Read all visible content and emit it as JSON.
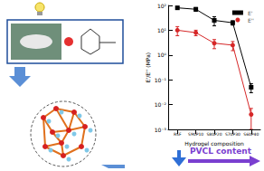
{
  "chart_data": {
    "type": "line",
    "x_label": "Hydrogel composition",
    "y_label": "E'/E'' (MPa)",
    "annotations": [
      "PVCL content"
    ],
    "categories": [
      "RSF",
      "S90P10",
      "S80P20",
      "S70P30",
      "S60P40"
    ],
    "series": [
      {
        "name": "E'",
        "color": "#000000",
        "marker": "square",
        "line_style": "solid",
        "values": [
          80,
          70,
          25,
          20,
          0.05
        ],
        "errors": [
          10,
          12,
          10,
          4,
          0.02
        ]
      },
      {
        "name": "E''",
        "color": "#d62728",
        "marker": "circle",
        "line_style": "solid",
        "values": [
          10,
          8,
          3,
          2.5,
          0.004
        ],
        "errors": [
          4,
          2,
          1.2,
          1,
          0.003
        ]
      }
    ],
    "log": "y",
    "ylim": [
      0.001,
      100
    ],
    "yticks": [
      {
        "value": 0.001,
        "label": "10⁻³"
      },
      {
        "value": 0.01,
        "label": "10⁻²"
      },
      {
        "value": 0.1,
        "label": "10⁻¹"
      },
      {
        "value": 1,
        "label": "10⁰"
      },
      {
        "value": 10,
        "label": "10¹"
      },
      {
        "value": 100,
        "label": "10²"
      }
    ],
    "grid": false,
    "legend": "top-right"
  }
}
